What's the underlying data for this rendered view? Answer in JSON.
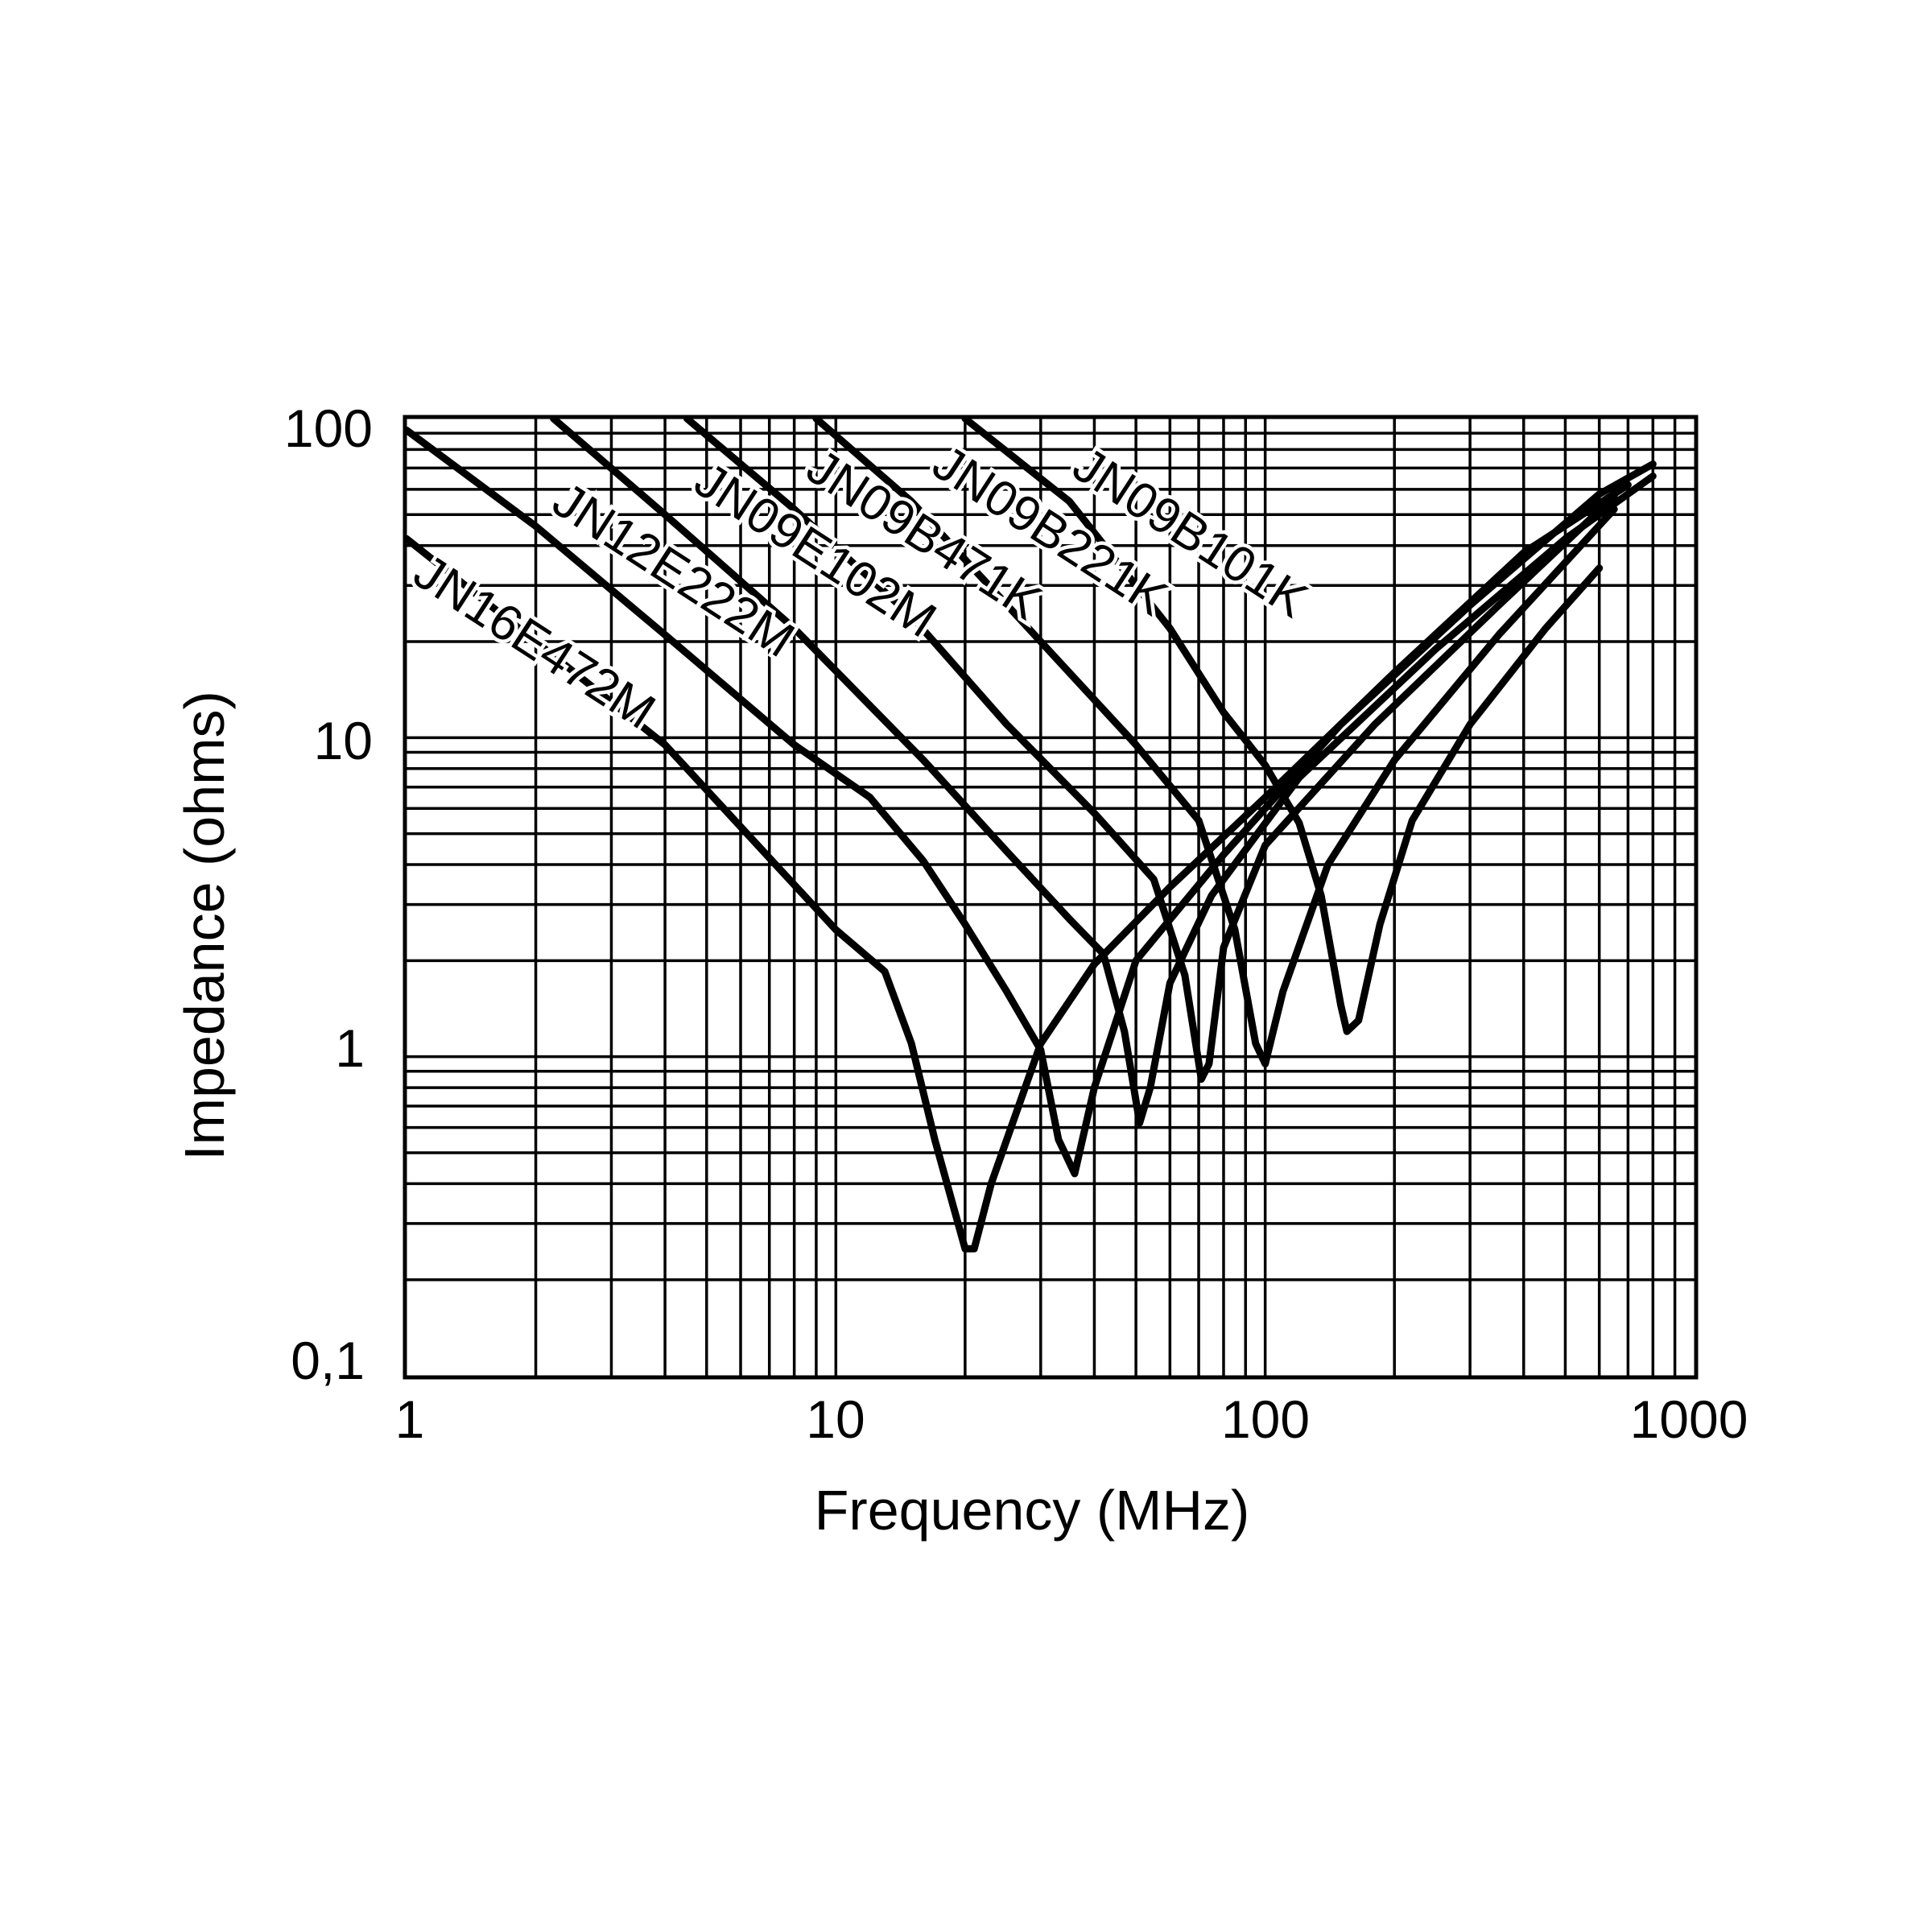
{
  "chart_data": {
    "type": "line",
    "title": "",
    "xlabel": "Frequency (MHz)",
    "ylabel": "Impedance (ohms)",
    "x_scale": "log",
    "y_scale": "log",
    "xlim": [
      1,
      1000
    ],
    "ylim": [
      0.1,
      100
    ],
    "x_ticks": [
      {
        "value": 1,
        "label": "1"
      },
      {
        "value": 10,
        "label": "10"
      },
      {
        "value": 100,
        "label": "100"
      },
      {
        "value": 1000,
        "label": "1000"
      }
    ],
    "y_ticks": [
      {
        "value": 0.1,
        "label": "0,1"
      },
      {
        "value": 1,
        "label": "1"
      },
      {
        "value": 10,
        "label": "10"
      },
      {
        "value": 100,
        "label": "100"
      }
    ],
    "grid": true,
    "legend": "none",
    "series": [
      {
        "name": "JN16E472M",
        "points": [
          [
            1,
            42
          ],
          [
            2,
            20
          ],
          [
            4,
            9.5
          ],
          [
            7,
            4.2
          ],
          [
            10,
            2.5
          ],
          [
            13,
            1.85
          ],
          [
            15,
            1.1
          ],
          [
            17,
            0.55
          ],
          [
            20,
            0.25
          ],
          [
            21,
            0.25
          ],
          [
            23,
            0.4
          ],
          [
            30,
            1.1
          ],
          [
            40,
            1.95
          ],
          [
            60,
            3.4
          ],
          [
            100,
            6.5
          ],
          [
            200,
            16
          ],
          [
            400,
            38
          ],
          [
            700,
            62
          ]
        ]
      },
      {
        "name": "JN12E222M",
        "points": [
          [
            1,
            92
          ],
          [
            2,
            46
          ],
          [
            4,
            21
          ],
          [
            8,
            9.5
          ],
          [
            12,
            6.5
          ],
          [
            16,
            4.1
          ],
          [
            20,
            2.6
          ],
          [
            25,
            1.6
          ],
          [
            30,
            1.05
          ],
          [
            33,
            0.55
          ],
          [
            36,
            0.43
          ],
          [
            40,
            0.8
          ],
          [
            50,
            2
          ],
          [
            80,
            4.3
          ],
          [
            150,
            11
          ],
          [
            300,
            26
          ],
          [
            600,
            58
          ],
          [
            800,
            72
          ]
        ]
      },
      {
        "name": "JN09E102M",
        "points": [
          [
            2.2,
            100
          ],
          [
            4,
            50
          ],
          [
            8,
            22
          ],
          [
            16,
            8.5
          ],
          [
            25,
            4.4
          ],
          [
            35,
            2.7
          ],
          [
            42,
            2.1
          ],
          [
            47,
            1.2
          ],
          [
            51,
            0.62
          ],
          [
            54,
            0.8
          ],
          [
            60,
            1.7
          ],
          [
            75,
            3.2
          ],
          [
            120,
            7.5
          ],
          [
            250,
            19
          ],
          [
            500,
            42
          ],
          [
            800,
            66
          ]
        ]
      },
      {
        "name": "JN09B471K",
        "points": [
          [
            4.5,
            100
          ],
          [
            8,
            52
          ],
          [
            15,
            24
          ],
          [
            25,
            11
          ],
          [
            40,
            5.8
          ],
          [
            55,
            3.6
          ],
          [
            65,
            1.8
          ],
          [
            71,
            0.85
          ],
          [
            74,
            0.95
          ],
          [
            80,
            2.2
          ],
          [
            100,
            4.6
          ],
          [
            180,
            11
          ],
          [
            350,
            26
          ],
          [
            650,
            57
          ]
        ]
      },
      {
        "name": "JN09B221K",
        "points": [
          [
            9,
            100
          ],
          [
            15,
            55
          ],
          [
            30,
            20
          ],
          [
            50,
            9.5
          ],
          [
            70,
            5.5
          ],
          [
            85,
            2.5
          ],
          [
            95,
            1.1
          ],
          [
            100,
            0.95
          ],
          [
            110,
            1.6
          ],
          [
            140,
            4
          ],
          [
            200,
            8.5
          ],
          [
            350,
            21
          ],
          [
            650,
            52
          ]
        ]
      },
      {
        "name": "JN09B101K",
        "points": [
          [
            20,
            100
          ],
          [
            35,
            55
          ],
          [
            60,
            22
          ],
          [
            80,
            12
          ],
          [
            100,
            8.2
          ],
          [
            120,
            5.4
          ],
          [
            135,
            3.2
          ],
          [
            150,
            1.45
          ],
          [
            155,
            1.2
          ],
          [
            165,
            1.3
          ],
          [
            185,
            2.6
          ],
          [
            220,
            5.5
          ],
          [
            300,
            11
          ],
          [
            450,
            22
          ],
          [
            600,
            34
          ]
        ]
      }
    ]
  }
}
